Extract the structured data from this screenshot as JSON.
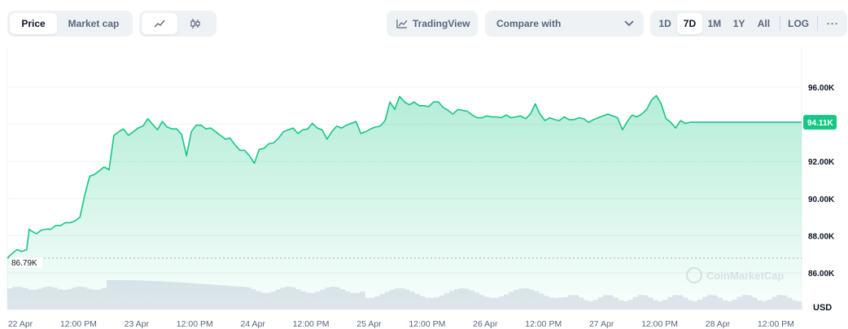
{
  "toolbar": {
    "type_options": [
      "Price",
      "Market cap"
    ],
    "type_selected": "Price",
    "chart_kind_icons": [
      "line-chart-icon",
      "candlestick-icon"
    ],
    "tradingview_label": "TradingView",
    "compare_label": "Compare with",
    "ranges": [
      "1D",
      "7D",
      "1M",
      "1Y",
      "All"
    ],
    "range_selected": "7D",
    "log_label": "LOG",
    "more_label": "···"
  },
  "colors": {
    "line": "#16c784",
    "accent": "#16c784",
    "grid": "#eff2f5",
    "axis_text": "#58667e",
    "volume": "#e2e6ed"
  },
  "chart_data": {
    "type": "area",
    "ylabel": "USD",
    "ylim": [
      85000,
      97000
    ],
    "y_ticks": [
      "86.00K",
      "88.00K",
      "90.00K",
      "92.00K",
      "94.00K",
      "96.00K"
    ],
    "y_tick_values": [
      86000,
      88000,
      90000,
      92000,
      94000,
      96000
    ],
    "x_tick_labels": [
      "22 Apr",
      "12:00 PM",
      "23 Apr",
      "12:00 PM",
      "24 Apr",
      "12:00 PM",
      "25 Apr",
      "12:00 PM",
      "26 Apr",
      "12:00 PM",
      "27 Apr",
      "12:00 PM",
      "28 Apr",
      "12:00 PM"
    ],
    "x_tick_hours": [
      0,
      12,
      24,
      36,
      48,
      60,
      72,
      84,
      96,
      108,
      120,
      132,
      144,
      156
    ],
    "current_value_label": "94.11K",
    "current_value": 94110,
    "start_value_label": "86.79K",
    "start_value": 86790,
    "watermark": "CoinMarketCap",
    "series": [
      {
        "hours": [
          0,
          1,
          2,
          3,
          4,
          4.5,
          5,
          6,
          7,
          8,
          9,
          10,
          11,
          12,
          13,
          14,
          15,
          16,
          17,
          18,
          19,
          20,
          21,
          22,
          23,
          24,
          25,
          26,
          27,
          28,
          29,
          30,
          31,
          32,
          33,
          34,
          35,
          36,
          37,
          38,
          39,
          40,
          41,
          42,
          43,
          44,
          45,
          46,
          47,
          48,
          49,
          50,
          51,
          52,
          53,
          54,
          55,
          56,
          57,
          58,
          59,
          60,
          61,
          62,
          63,
          64,
          65,
          66,
          67,
          68,
          69,
          70,
          71,
          72,
          73,
          74,
          75,
          76,
          77,
          78,
          79,
          80,
          81,
          82,
          83,
          84,
          85,
          86,
          87,
          88,
          89,
          90,
          91,
          92,
          93,
          94,
          95,
          96,
          97,
          98,
          99,
          100,
          101,
          102,
          103,
          104,
          105,
          106,
          107,
          108,
          109,
          110,
          111,
          112,
          113,
          114,
          115,
          116,
          117,
          118,
          119,
          120,
          121,
          122,
          123,
          124,
          125,
          126,
          127,
          128,
          129,
          130,
          131,
          132,
          133,
          134,
          135,
          136,
          137,
          138,
          139,
          140,
          141,
          142,
          143,
          144,
          145,
          146,
          147,
          148,
          149,
          150,
          151,
          152,
          153,
          154,
          155,
          156,
          157,
          158,
          159,
          160,
          161,
          162,
          163,
          164
        ],
        "values": [
          86790,
          87050,
          87250,
          87150,
          87250,
          88350,
          88250,
          88100,
          88300,
          88350,
          88350,
          88550,
          88550,
          88700,
          88700,
          88800,
          89000,
          90200,
          91200,
          91300,
          91500,
          91700,
          91550,
          93400,
          93600,
          93750,
          93400,
          93600,
          93800,
          93900,
          94300,
          94000,
          93700,
          94150,
          93850,
          93750,
          93750,
          93450,
          92300,
          93600,
          93950,
          93950,
          93750,
          93800,
          93600,
          93400,
          93200,
          93250,
          92900,
          92600,
          92600,
          92300,
          91900,
          92650,
          92700,
          92950,
          93000,
          93250,
          93600,
          93700,
          93800,
          93500,
          93700,
          93750,
          94050,
          93800,
          93700,
          93200,
          93600,
          93900,
          93800,
          93950,
          94050,
          94150,
          93500,
          93600,
          93750,
          93850,
          93900,
          94200,
          95200,
          94800,
          95500,
          95200,
          95050,
          95200,
          95000,
          95000,
          94950,
          95200,
          95200,
          94900,
          94750,
          94550,
          94800,
          94750,
          94700,
          94500,
          94350,
          94350,
          94450,
          94400,
          94400,
          94350,
          94500,
          94350,
          94400,
          94450,
          94300,
          94550,
          95100,
          94550,
          94200,
          94350,
          94250,
          94200,
          94400,
          94250,
          94250,
          94350,
          94300,
          94100,
          94250,
          94350,
          94450,
          94550,
          94450,
          94350,
          93700,
          94150,
          94500,
          94400,
          94550,
          94800,
          95300,
          95550,
          95100,
          94300,
          94100,
          93800,
          94200,
          94050,
          94110,
          94110,
          94110,
          94110,
          94110,
          94110,
          94110,
          94110,
          94110,
          94110,
          94110,
          94110,
          94110,
          94110,
          94110,
          94110,
          94110,
          94110,
          94110,
          94110,
          94110,
          94110,
          94110,
          94110
        ]
      }
    ]
  }
}
